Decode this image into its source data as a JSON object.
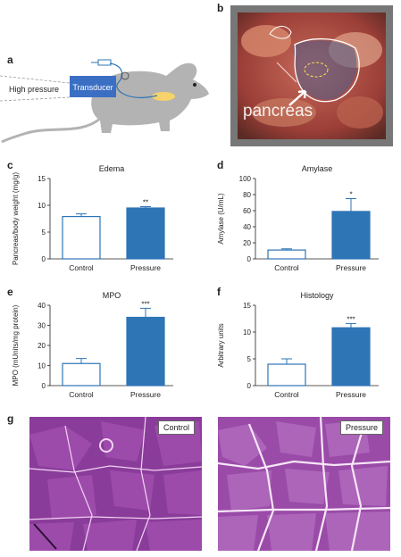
{
  "letters": {
    "a": "a",
    "b": "b",
    "c": "c",
    "d": "d",
    "e": "e",
    "f": "f",
    "g": "g"
  },
  "schematic": {
    "pressure_label": "High pressure",
    "transducer_label": "Transducer"
  },
  "photo": {
    "organ_label": "pancreas"
  },
  "colors": {
    "pressure_bar": "#2e75b6",
    "control_bar": "#ffffff",
    "bar_edge": "#2e75b6"
  },
  "chart_data": [
    {
      "id": "edema",
      "type": "bar",
      "title": "Edema",
      "ylabel": "Pancreas/body weight (mg/g)",
      "categories": [
        "Control",
        "Pressure"
      ],
      "values": [
        7.9,
        9.5
      ],
      "errors": [
        0.5,
        0.25
      ],
      "significance": [
        "",
        "**"
      ],
      "ylim": [
        0,
        15
      ],
      "yticks": [
        0,
        5,
        10,
        15
      ]
    },
    {
      "id": "amylase",
      "type": "bar",
      "title": "Amylase",
      "ylabel": "Amylase (U/mL)",
      "categories": [
        "Control",
        "Pressure"
      ],
      "values": [
        11,
        59
      ],
      "errors": [
        1.5,
        16
      ],
      "significance": [
        "",
        "*"
      ],
      "ylim": [
        0,
        100
      ],
      "yticks": [
        0,
        20,
        40,
        60,
        80,
        100
      ]
    },
    {
      "id": "mpo",
      "type": "bar",
      "title": "MPO",
      "ylabel": "MPO (mUnits/mg protein)",
      "categories": [
        "Control",
        "Pressure"
      ],
      "values": [
        11,
        34
      ],
      "errors": [
        2.5,
        4.5
      ],
      "significance": [
        "",
        "***"
      ],
      "ylim": [
        0,
        40
      ],
      "yticks": [
        0,
        10,
        20,
        30,
        40
      ]
    },
    {
      "id": "histology",
      "type": "bar",
      "title": "Histology",
      "ylabel": "Arbitrary units",
      "categories": [
        "Control",
        "Pressure"
      ],
      "values": [
        4.0,
        10.8
      ],
      "errors": [
        1.0,
        0.8
      ],
      "significance": [
        "",
        "***"
      ],
      "ylim": [
        0,
        15
      ],
      "yticks": [
        0,
        5,
        10,
        15
      ]
    }
  ],
  "histology_images": [
    {
      "label": "Control"
    },
    {
      "label": "Pressure"
    }
  ]
}
